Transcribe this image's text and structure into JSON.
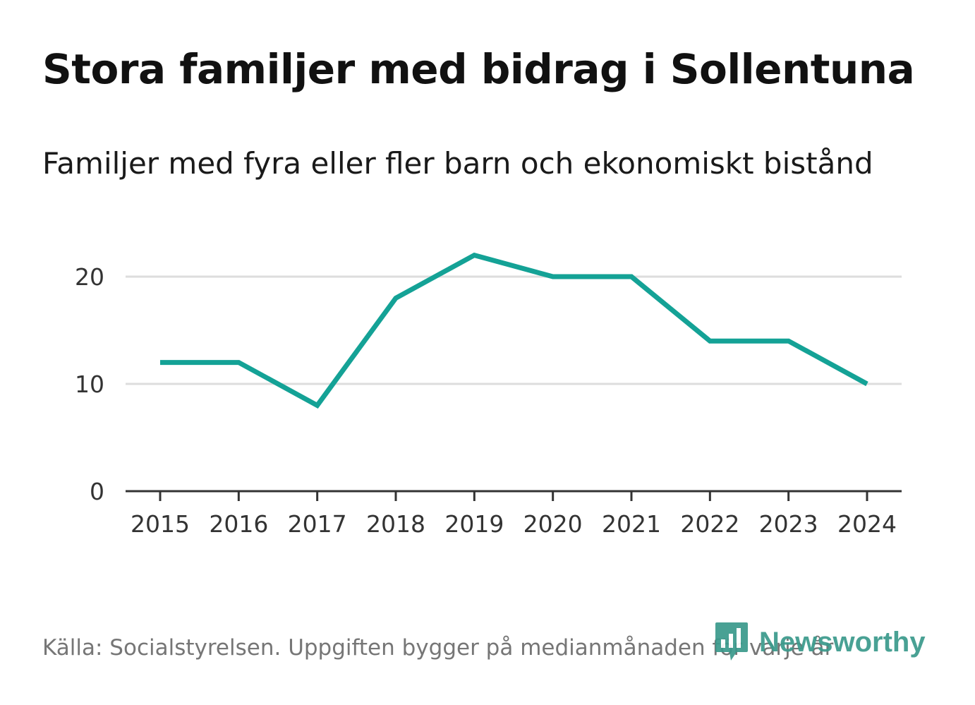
{
  "header": {
    "title": "Stora familjer med bidrag i Sollentuna",
    "subtitle": "Familjer med fyra eller fler barn och ekonomiskt bistånd"
  },
  "footer": {
    "source": "Källa: Socialstyrelsen. Uppgiften bygger på medianmånaden för varje år"
  },
  "brand": {
    "name": "Newsworthy",
    "color": "#3a9a8c",
    "icon": "newsworthy-logo-icon"
  },
  "colors": {
    "line": "#14a296",
    "grid": "#dddddd",
    "axis": "#333333",
    "tick_text": "#333333"
  },
  "chart_data": {
    "type": "line",
    "title": "Stora familjer med bidrag i Sollentuna",
    "subtitle": "Familjer med fyra eller fler barn och ekonomiskt bistånd",
    "xlabel": "",
    "ylabel": "",
    "categories": [
      "2015",
      "2016",
      "2017",
      "2018",
      "2019",
      "2020",
      "2021",
      "2022",
      "2023",
      "2024"
    ],
    "series": [
      {
        "name": "Familjer med fyra eller fler barn och ekonomiskt bistånd",
        "values": [
          12,
          12,
          8,
          18,
          22,
          20,
          20,
          14,
          14,
          10
        ]
      }
    ],
    "ylim": [
      0,
      22
    ],
    "yticks": [
      0,
      10,
      20
    ],
    "grid": true,
    "legend": "none"
  }
}
